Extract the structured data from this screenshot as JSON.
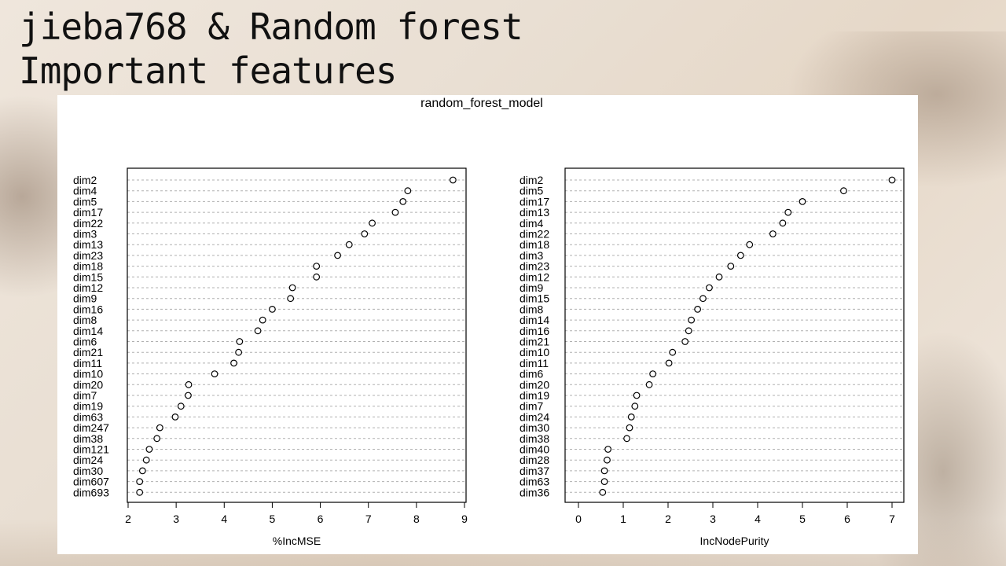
{
  "slide": {
    "title_line1": "jieba768 & Random forest",
    "title_line2": "Important features"
  },
  "chart_data": {
    "type": "scatter",
    "title": "random_forest_model",
    "panels": [
      {
        "xlabel": "%IncMSE",
        "xlim": [
          2,
          9
        ],
        "xticks": [
          2,
          3,
          4,
          5,
          6,
          7,
          8,
          9
        ],
        "labels": [
          "dim2",
          "dim4",
          "dim5",
          "dim17",
          "dim22",
          "dim3",
          "dim13",
          "dim23",
          "dim18",
          "dim15",
          "dim12",
          "dim9",
          "dim16",
          "dim8",
          "dim14",
          "dim6",
          "dim21",
          "dim11",
          "dim10",
          "dim20",
          "dim7",
          "dim19",
          "dim63",
          "dim247",
          "dim38",
          "dim121",
          "dim24",
          "dim30",
          "dim607",
          "dim693"
        ],
        "values": [
          8.76,
          7.82,
          7.72,
          7.56,
          7.08,
          6.92,
          6.6,
          6.36,
          5.92,
          5.92,
          5.42,
          5.38,
          5.0,
          4.8,
          4.7,
          4.32,
          4.3,
          4.2,
          3.8,
          3.26,
          3.25,
          3.1,
          2.98,
          2.66,
          2.6,
          2.44,
          2.38,
          2.3,
          2.24,
          2.24
        ]
      },
      {
        "xlabel": "IncNodePurity",
        "xlim": [
          0,
          7
        ],
        "xticks": [
          0,
          1,
          2,
          3,
          4,
          5,
          6,
          7
        ],
        "labels": [
          "dim2",
          "dim5",
          "dim17",
          "dim13",
          "dim4",
          "dim22",
          "dim18",
          "dim3",
          "dim23",
          "dim12",
          "dim9",
          "dim15",
          "dim8",
          "dim14",
          "dim16",
          "dim21",
          "dim10",
          "dim11",
          "dim6",
          "dim20",
          "dim19",
          "dim7",
          "dim24",
          "dim30",
          "dim38",
          "dim40",
          "dim28",
          "dim37",
          "dim63",
          "dim36"
        ],
        "values": [
          7.0,
          5.92,
          5.0,
          4.68,
          4.56,
          4.34,
          3.82,
          3.62,
          3.4,
          3.14,
          2.92,
          2.78,
          2.66,
          2.52,
          2.46,
          2.38,
          2.1,
          2.02,
          1.66,
          1.58,
          1.3,
          1.26,
          1.18,
          1.14,
          1.08,
          0.66,
          0.64,
          0.58,
          0.58,
          0.54
        ]
      }
    ]
  }
}
